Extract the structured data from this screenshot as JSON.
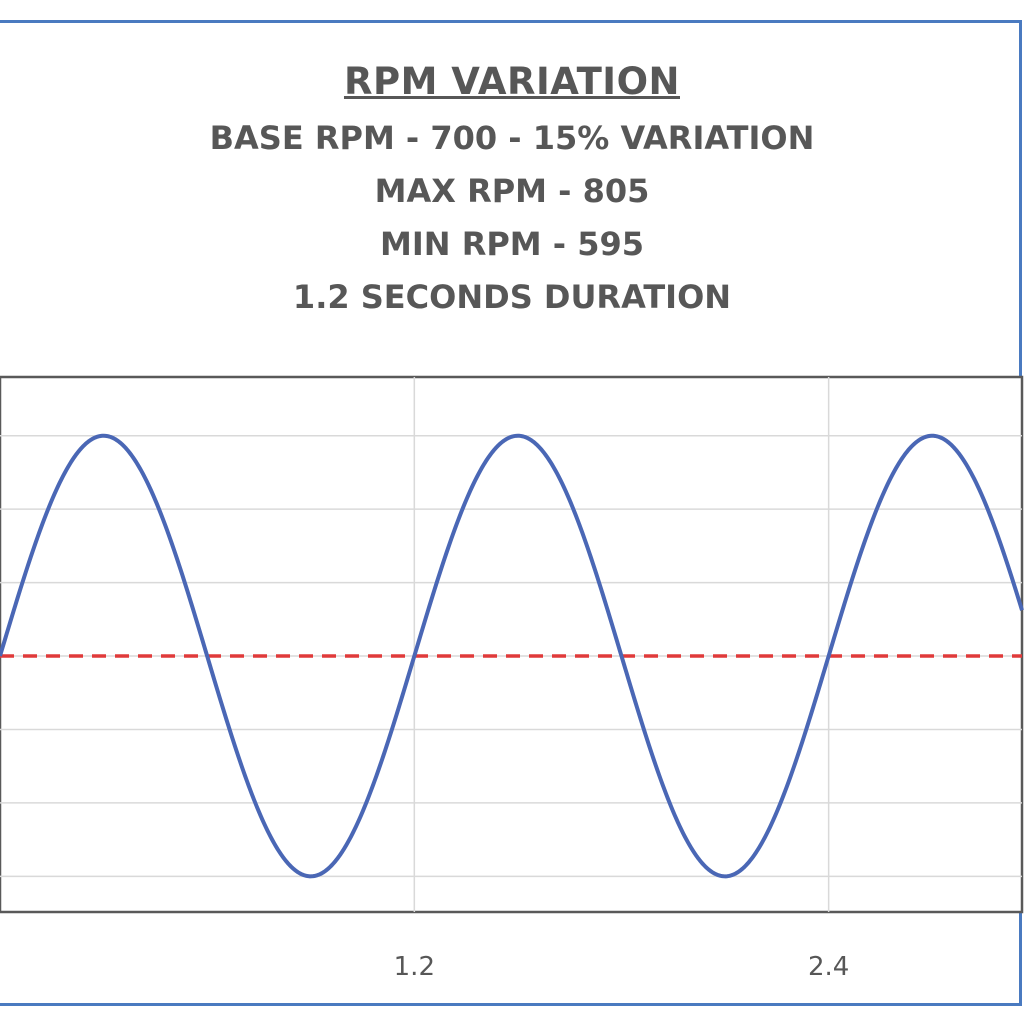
{
  "title": "RPM VARIATION",
  "subtitle_lines": [
    "BASE RPM - 700 - 15% VARIATION",
    "MAX RPM - 805",
    "MIN RPM - 595",
    "1.2 SECONDS DURATION"
  ],
  "colors": {
    "frame": "#4a7ac0",
    "series": "#4a67b5",
    "baseline": "#e03a3a",
    "grid": "#d9d9d9",
    "axis": "#595959",
    "text": "#575757"
  },
  "chart_data": {
    "type": "line",
    "xlim": [
      0,
      2.96
    ],
    "ylim": [
      578,
      833
    ],
    "x_ticks": [
      1.2,
      2.4
    ],
    "x_tick_labels": [
      "1.2",
      "2.4"
    ],
    "grid": true,
    "series": [
      {
        "function": "700 + 105 * sin(2*pi*(x - 1.2)/1.2)",
        "base": 700,
        "amplitude": 105,
        "period": 1.2,
        "max": 805,
        "min": 595,
        "x_range": [
          0,
          2.96
        ]
      }
    ],
    "reference_line": {
      "y": 700,
      "style": "dashed"
    }
  }
}
